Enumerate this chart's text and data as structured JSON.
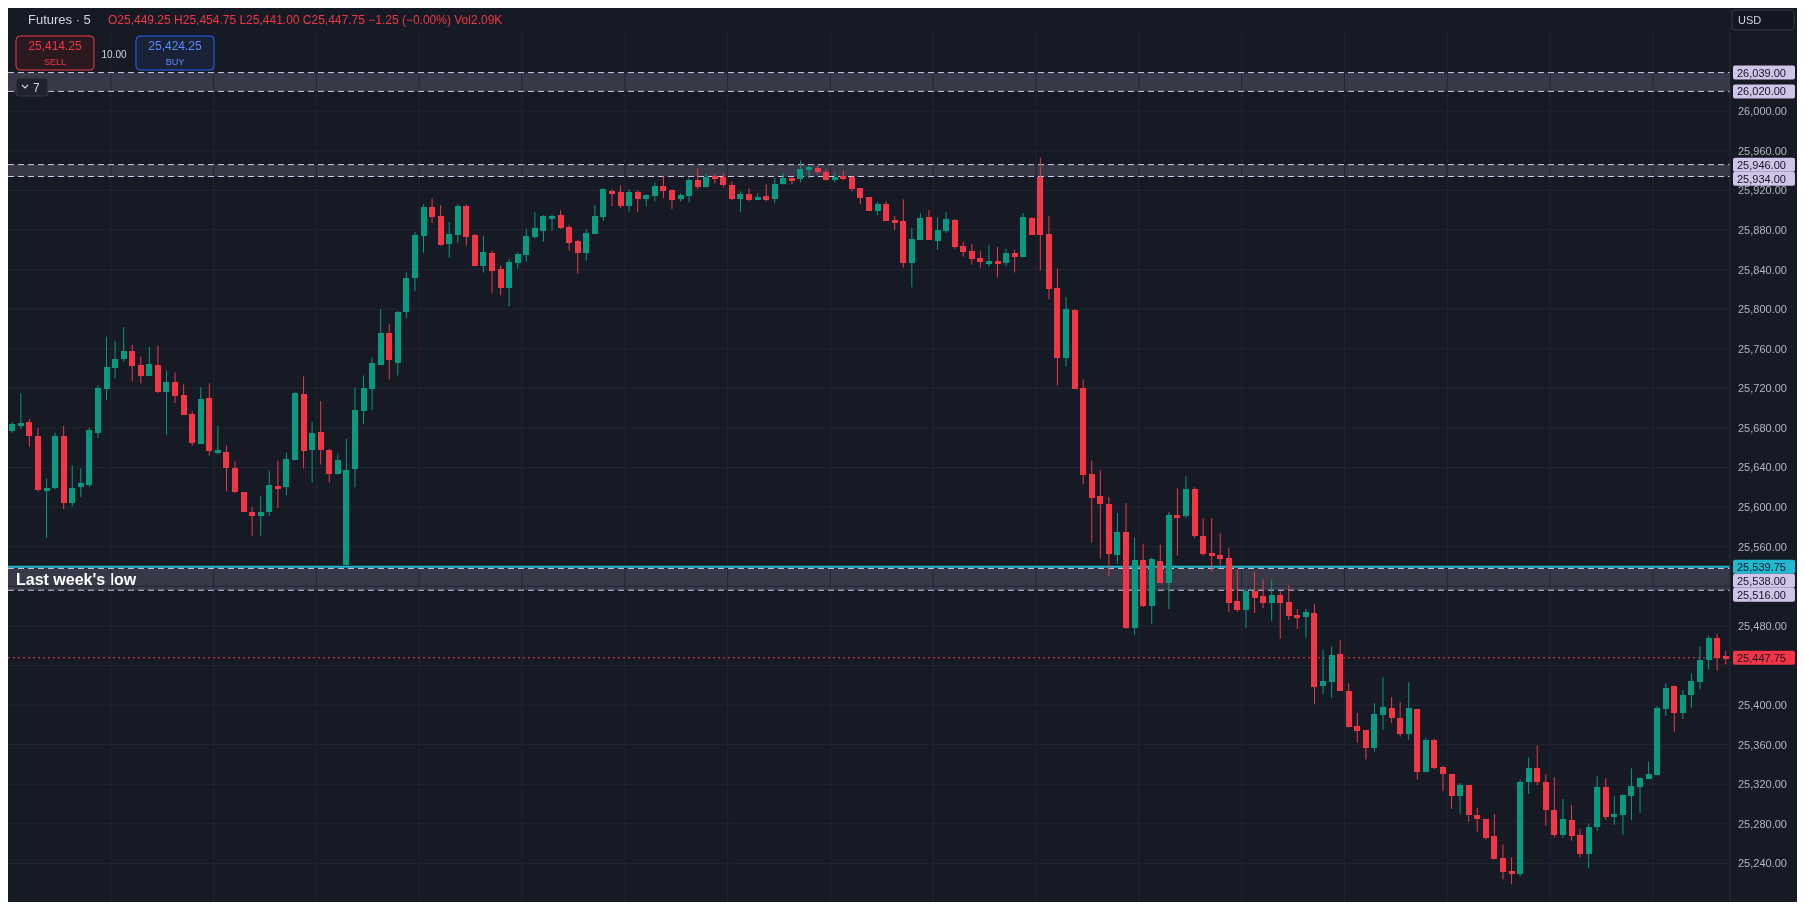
{
  "chart_data": {
    "type": "candlestick",
    "title": "Futures · 5",
    "annotations": [
      "O25,449.25 H25,454.75 L25,441.00 C25,447.75 −1.25 (−0.00%) Vol2.09K",
      "25,414.25",
      "SELL",
      "10.00",
      "25,424.25",
      "BUY",
      "7",
      "USD"
    ],
    "categories": [
      null,
      null,
      null,
      null,
      null,
      null,
      null,
      null,
      null,
      null,
      null,
      null,
      null,
      null,
      null,
      null,
      null,
      null,
      null,
      null,
      null,
      null,
      null,
      null,
      null,
      null,
      null,
      null,
      null,
      null,
      null,
      null,
      null,
      null,
      null,
      null,
      null,
      null,
      null,
      null,
      null,
      null,
      null,
      null,
      null,
      null,
      null,
      null,
      null,
      null,
      null,
      null,
      null,
      null,
      null,
      null,
      null,
      null,
      null,
      null,
      null,
      null,
      null,
      null,
      null,
      null,
      null,
      null,
      null,
      null,
      null,
      null,
      null,
      null,
      null,
      null,
      null,
      null,
      null,
      null,
      null,
      null,
      null,
      null,
      null,
      null,
      null,
      null,
      null,
      null,
      null,
      null,
      null,
      null,
      null,
      null,
      null,
      null,
      null,
      null,
      null,
      null,
      null,
      null,
      null,
      null,
      null,
      null,
      null,
      null,
      null,
      null,
      null,
      null,
      null,
      null,
      null,
      null,
      null,
      null,
      null,
      null,
      null,
      null,
      null,
      null,
      null,
      null,
      null,
      null,
      null,
      null,
      null,
      null,
      null,
      null,
      null,
      null,
      null,
      null,
      null,
      null,
      null,
      null,
      null,
      null,
      null,
      null,
      null,
      null,
      null,
      null,
      null,
      null,
      null,
      null,
      null,
      null,
      null,
      null,
      null,
      null,
      null,
      null,
      null,
      null,
      null,
      null,
      null,
      null,
      null,
      null,
      null,
      null,
      null,
      null,
      null,
      null,
      null,
      null,
      null,
      null,
      null,
      null,
      null,
      null,
      null,
      null,
      null,
      null,
      null,
      null,
      null,
      null,
      null,
      null,
      null,
      null,
      null,
      null,
      null
    ],
    "ohlc": [
      [
        25677,
        25686,
        25675,
        25684
      ],
      [
        25683,
        25715,
        25679,
        25685
      ],
      [
        25686,
        25689,
        25661,
        25672
      ],
      [
        25672,
        25680,
        25616,
        25617
      ],
      [
        25618,
        25629,
        25569,
        25618
      ],
      [
        25619,
        25675,
        25618,
        25672
      ],
      [
        25672,
        25682,
        25598,
        25604
      ],
      [
        25604,
        25642,
        25601,
        25619
      ],
      [
        25620,
        25639,
        25610,
        25624
      ],
      [
        25622,
        25680,
        25620,
        25678
      ],
      [
        25675,
        25723,
        25670,
        25720
      ],
      [
        25719,
        25772,
        25708,
        25742
      ],
      [
        25741,
        25768,
        25730,
        25750
      ],
      [
        25750,
        25782,
        25747,
        25758
      ],
      [
        25758,
        25764,
        25727,
        25743
      ],
      [
        25744,
        25752,
        25725,
        25732
      ],
      [
        25732,
        25762,
        25732,
        25745
      ],
      [
        25744,
        25763,
        25715,
        25716
      ],
      [
        25716,
        25738,
        25673,
        25726
      ],
      [
        25726,
        25736,
        25705,
        25712
      ],
      [
        25713,
        25724,
        25693,
        25693
      ],
      [
        25694,
        25697,
        25662,
        25665
      ],
      [
        25664,
        25721,
        25664,
        25709
      ],
      [
        25710,
        25725,
        25652,
        25657
      ],
      [
        25657,
        25682,
        25653,
        25657
      ],
      [
        25656,
        25662,
        25616,
        25639
      ],
      [
        25639,
        25646,
        25614,
        25615
      ],
      [
        25615,
        25615,
        25595,
        25595
      ],
      [
        25595,
        25600,
        25571,
        25591
      ],
      [
        25591,
        25611,
        25571,
        25595
      ],
      [
        25595,
        25637,
        25591,
        25622
      ],
      [
        25622,
        25647,
        25599,
        25619
      ],
      [
        25620,
        25655,
        25612,
        25649
      ],
      [
        25648,
        25716,
        25647,
        25715
      ],
      [
        25714,
        25732,
        25639,
        25657
      ],
      [
        25658,
        25686,
        25625,
        25675
      ],
      [
        25676,
        25707,
        25643,
        25658
      ],
      [
        25658,
        25659,
        25625,
        25633
      ],
      [
        25633,
        25654,
        25633,
        25648
      ],
      [
        25541,
        25669,
        25539.75,
        25637
      ],
      [
        25638,
        25721,
        25620,
        25698
      ],
      [
        25697,
        25733,
        25684,
        25720
      ],
      [
        25719,
        25751,
        25698,
        25746
      ],
      [
        25744,
        25800,
        25744,
        25776
      ],
      [
        25776,
        25785,
        25729,
        25749
      ],
      [
        25746,
        25798,
        25733,
        25797
      ],
      [
        25797,
        25837,
        25791,
        25831
      ],
      [
        25831,
        25878,
        25818,
        25875
      ],
      [
        25874,
        25906,
        25857,
        25903
      ],
      [
        25903,
        25912,
        25887,
        25893
      ],
      [
        25894,
        25905,
        25864,
        25865
      ],
      [
        25866,
        25888,
        25852,
        25876
      ],
      [
        25875,
        25906,
        25867,
        25904
      ],
      [
        25904,
        25906,
        25864,
        25873
      ],
      [
        25875,
        25876,
        25844,
        25844
      ],
      [
        25844,
        25874,
        25837,
        25858
      ],
      [
        25857,
        25859,
        25816,
        25839
      ],
      [
        25841,
        25844,
        25814,
        25821
      ],
      [
        25821,
        25851,
        25803,
        25848
      ],
      [
        25847,
        25857,
        25841,
        25856
      ],
      [
        25855,
        25881,
        25848,
        25874
      ],
      [
        25873,
        25898,
        25871,
        25882
      ],
      [
        25879,
        25895,
        25868,
        25894
      ],
      [
        25892,
        25896,
        25879,
        25895
      ],
      [
        25895,
        25900,
        25881,
        25882
      ],
      [
        25883,
        25885,
        25859,
        25867
      ],
      [
        25869,
        25870,
        25836,
        25857
      ],
      [
        25857,
        25881,
        25849,
        25877
      ],
      [
        25876,
        25905,
        25876,
        25894
      ],
      [
        25893,
        25922,
        25889,
        25921
      ],
      [
        25920,
        25921,
        25904,
        25917
      ],
      [
        25918,
        25925,
        25902,
        25904
      ],
      [
        25904,
        25921,
        25898,
        25918
      ],
      [
        25918,
        25920,
        25898,
        25911
      ],
      [
        25911,
        25916,
        25904,
        25915
      ],
      [
        25914,
        25928,
        25909,
        25924
      ],
      [
        25924,
        25934,
        25912,
        25919
      ],
      [
        25920,
        25921,
        25901,
        25910
      ],
      [
        25911,
        25917,
        25909,
        25915
      ],
      [
        25914,
        25933,
        25908,
        25930
      ],
      [
        25930,
        25942,
        25921,
        25923
      ],
      [
        25923,
        25937,
        25923,
        25934
      ],
      [
        25935,
        25937,
        25927,
        25932
      ],
      [
        25933,
        25937,
        25923,
        25925
      ],
      [
        25925,
        25929,
        25910,
        25911
      ],
      [
        25911,
        25919,
        25898,
        25916
      ],
      [
        25916,
        25922,
        25909,
        25910
      ],
      [
        25911,
        25917,
        25910,
        25914
      ],
      [
        25914,
        25926,
        25909,
        25910
      ],
      [
        25911,
        25933,
        25907,
        25926
      ],
      [
        25926,
        25937,
        25926,
        25932
      ],
      [
        25932,
        25933,
        25926,
        25931
      ],
      [
        25931,
        25950,
        25928,
        25942
      ],
      [
        25942,
        25946,
        25932,
        25943
      ],
      [
        25943,
        25945,
        25936,
        25939
      ],
      [
        25939,
        25941,
        25930,
        25930
      ],
      [
        25930,
        25938,
        25928,
        25934
      ],
      [
        25934,
        25940,
        25930,
        25932
      ],
      [
        25934,
        25934,
        25919,
        25921
      ],
      [
        25922,
        25922,
        25906,
        25912
      ],
      [
        25913,
        25913,
        25899,
        25899
      ],
      [
        25899,
        25908,
        25895,
        25906
      ],
      [
        25906,
        25909,
        25889,
        25889
      ],
      [
        25891,
        25894,
        25880,
        25888
      ],
      [
        25889,
        25911,
        25842,
        25847
      ],
      [
        25847,
        25882,
        25822,
        25871
      ],
      [
        25870,
        25897,
        25870,
        25892
      ],
      [
        25893,
        25900,
        25870,
        25870
      ],
      [
        25869,
        25893,
        25860,
        25880
      ],
      [
        25879,
        25898,
        25877,
        25891
      ],
      [
        25890,
        25891,
        25861,
        25863
      ],
      [
        25864,
        25868,
        25853,
        25858
      ],
      [
        25859,
        25866,
        25845,
        25851
      ],
      [
        25852,
        25859,
        25842,
        25848
      ],
      [
        25847,
        25865,
        25843,
        25848
      ],
      [
        25849,
        25863,
        25832,
        25846
      ],
      [
        25847,
        25861,
        25843,
        25857
      ],
      [
        25857,
        25860,
        25837,
        25853
      ],
      [
        25853,
        25897,
        25853,
        25893
      ],
      [
        25892,
        25893,
        25875,
        25875
      ],
      [
        25934,
        25953,
        25839,
        25875
      ],
      [
        25876,
        25894,
        25810,
        25820
      ],
      [
        25821,
        25841,
        25723,
        25751
      ],
      [
        25751,
        25812,
        25742,
        25800
      ],
      [
        25799,
        25800,
        25719,
        25719
      ],
      [
        25720,
        25729,
        25623,
        25632
      ],
      [
        25633,
        25647,
        25564,
        25609
      ],
      [
        25611,
        25637,
        25548,
        25603
      ],
      [
        25603,
        25610,
        25530,
        25553
      ],
      [
        25552,
        25594,
        25543,
        25575
      ],
      [
        25575,
        25604,
        25477,
        25478
      ],
      [
        25478,
        25569,
        25471,
        25547
      ],
      [
        25547,
        25563,
        25499,
        25500
      ],
      [
        25500,
        25549,
        25482,
        25548
      ],
      [
        25546,
        25562,
        25523,
        25523
      ],
      [
        25523,
        25595,
        25497,
        25592
      ],
      [
        25592,
        25619,
        25551,
        25590
      ],
      [
        25591,
        25631,
        25589,
        25618
      ],
      [
        25618,
        25620,
        25569,
        25571
      ],
      [
        25571,
        25589,
        25551,
        25553
      ],
      [
        25554,
        25589,
        25535,
        25551
      ],
      [
        25552,
        25574,
        25541,
        25548
      ],
      [
        25549,
        25559,
        25494,
        25503
      ],
      [
        25505,
        25537,
        25494,
        25496
      ],
      [
        25496,
        25517,
        25478,
        25515
      ],
      [
        25515,
        25535,
        25493,
        25508
      ],
      [
        25510,
        25527,
        25498,
        25503
      ],
      [
        25503,
        25527,
        25485,
        25511
      ],
      [
        25511,
        25515,
        25467,
        25503
      ],
      [
        25504,
        25521,
        25486,
        25490
      ],
      [
        25491,
        25497,
        25477,
        25489
      ],
      [
        25489,
        25497,
        25468,
        25494
      ],
      [
        25493,
        25502,
        25401,
        25418
      ],
      [
        25419,
        25456,
        25411,
        25424
      ],
      [
        25423,
        25459,
        25407,
        25451
      ],
      [
        25452,
        25466,
        25414,
        25414
      ],
      [
        25414,
        25422,
        25377,
        25378
      ],
      [
        25379,
        25392,
        25362,
        25374
      ],
      [
        25375,
        25375,
        25345,
        25357
      ],
      [
        25357,
        25402,
        25353,
        25391
      ],
      [
        25390,
        25428,
        25375,
        25398
      ],
      [
        25397,
        25408,
        25382,
        25387
      ],
      [
        25387,
        25403,
        25368,
        25371
      ],
      [
        25371,
        25423,
        25365,
        25397
      ],
      [
        25396,
        25396,
        25325,
        25332
      ],
      [
        25332,
        25367,
        25332,
        25365
      ],
      [
        25365,
        25366,
        25335,
        25336
      ],
      [
        25337,
        25339,
        25313,
        25330
      ],
      [
        25330,
        25330,
        25295,
        25308
      ],
      [
        25308,
        25321,
        25290,
        25319
      ],
      [
        25319,
        25319,
        25282,
        25289
      ],
      [
        25289,
        25296,
        25272,
        25285
      ],
      [
        25285,
        25285,
        25264,
        25266
      ],
      [
        25268,
        25290,
        25244,
        25244
      ],
      [
        25245,
        25259,
        25224,
        25231
      ],
      [
        25232,
        25246,
        25219,
        25231
      ],
      [
        25229,
        25325,
        25227,
        25322
      ],
      [
        25322,
        25347,
        25310,
        25336
      ],
      [
        25336,
        25359,
        25319,
        25322
      ],
      [
        25322,
        25330,
        25278,
        25294
      ],
      [
        25294,
        25327,
        25266,
        25269
      ],
      [
        25269,
        25305,
        25266,
        25285
      ],
      [
        25284,
        25299,
        25263,
        25268
      ],
      [
        25269,
        25275,
        25246,
        25249
      ],
      [
        25249,
        25280,
        25235,
        25277
      ],
      [
        25277,
        25328,
        25273,
        25317
      ],
      [
        25317,
        25326,
        25284,
        25287
      ],
      [
        25287,
        25308,
        25279,
        25290
      ],
      [
        25289,
        25310,
        25269,
        25309
      ],
      [
        25308,
        25336,
        25284,
        25318
      ],
      [
        25317,
        25327,
        25291,
        25326
      ],
      [
        25325,
        25343,
        25325,
        25330
      ],
      [
        25329,
        25399,
        25329,
        25397
      ],
      [
        25396,
        25422,
        25389,
        25417
      ],
      [
        25419,
        25419,
        25373,
        25392
      ],
      [
        25392,
        25415,
        25386,
        25410
      ],
      [
        25410,
        25432,
        25397,
        25424
      ],
      [
        25423,
        25459,
        25416,
        25446
      ],
      [
        25445,
        25470,
        25436,
        25468
      ],
      [
        25468,
        25472,
        25435,
        25448
      ],
      [
        25449.25,
        25454.75,
        25441,
        25447.75
      ]
    ],
    "ylim": [
      25201,
      26080
    ],
    "yticks": [
      {
        "value": 25240,
        "label": "25,240.00"
      },
      {
        "value": 25280,
        "label": "25,280.00"
      },
      {
        "value": 25320,
        "label": "25,320.00"
      },
      {
        "value": 25360,
        "label": "25,360.00"
      },
      {
        "value": 25400,
        "label": "25,400.00"
      },
      {
        "value": 25440,
        "label": null
      },
      {
        "value": 25480,
        "label": "25,480.00"
      },
      {
        "value": 25520,
        "label": null
      },
      {
        "value": 25560,
        "label": "25,560.00"
      },
      {
        "value": 25600,
        "label": "25,600.00"
      },
      {
        "value": 25640,
        "label": "25,640.00"
      },
      {
        "value": 25680,
        "label": "25,680.00"
      },
      {
        "value": 25720,
        "label": "25,720.00"
      },
      {
        "value": 25760,
        "label": "25,760.00"
      },
      {
        "value": 25800,
        "label": "25,800.00"
      },
      {
        "value": 25840,
        "label": "25,840.00"
      },
      {
        "value": 25880,
        "label": "25,880.00"
      },
      {
        "value": 25920,
        "label": "25,920.00"
      },
      {
        "value": 25960,
        "label": "25,960.00"
      },
      {
        "value": 26000,
        "label": "26,000.00"
      }
    ],
    "grid": true,
    "ref_lines": [
      {
        "axis": "y",
        "value": 26039,
        "label": "26,039.00",
        "color": "#d1c4e9",
        "line_style": "dashed"
      },
      {
        "axis": "y",
        "value": 26020,
        "label": "26,020.00",
        "color": "#d1c4e9",
        "line_style": "dashed"
      },
      {
        "axis": "y",
        "value": 25946,
        "label": "25,946.00",
        "color": "#d1c4e9",
        "line_style": "dashed"
      },
      {
        "axis": "y",
        "value": 25934,
        "label": "25,934.00",
        "color": "#d1c4e9",
        "line_style": "dashed"
      },
      {
        "axis": "y",
        "value": 25539.75,
        "label": "25,539.75",
        "color": "#22b8cf",
        "line_style": "solid"
      },
      {
        "axis": "y",
        "value": 25538,
        "label": "25,538.00",
        "color": "#d1c4e9",
        "line_style": "dashed"
      },
      {
        "axis": "y",
        "value": 25516,
        "label": "25,516.00",
        "color": "#d1c4e9",
        "line_style": "dashed"
      },
      {
        "axis": "y",
        "value": 25447.75,
        "label": "25,447.75",
        "color": "#f23645",
        "line_style": "dotted"
      }
    ],
    "bands": [
      {
        "axis": "y",
        "from": 26020,
        "to": 26039,
        "color": "#434651"
      },
      {
        "axis": "y",
        "from": 25934,
        "to": 25946,
        "color": "#434651"
      },
      {
        "axis": "y",
        "from": 25516,
        "to": 25538,
        "color": "#434651",
        "label": "Last week's low"
      }
    ]
  }
}
